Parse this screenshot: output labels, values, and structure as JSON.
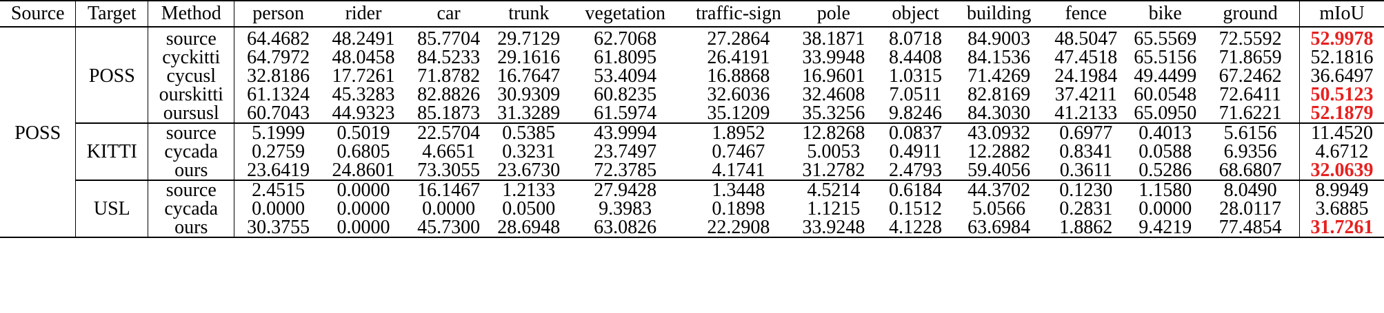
{
  "table": {
    "headers": [
      "Source",
      "Target",
      "Method",
      "person",
      "rider",
      "car",
      "trunk",
      "vegetation",
      "traffic-sign",
      "pole",
      "object",
      "building",
      "fence",
      "bike",
      "ground",
      "mIoU"
    ],
    "source": "POSS",
    "groups": [
      {
        "target": "POSS",
        "rows": [
          {
            "method": "source",
            "values": [
              "64.4682",
              "48.2491",
              "85.7704",
              "29.7129",
              "62.7068",
              "27.2864",
              "38.1871",
              "8.0718",
              "84.9003",
              "48.5047",
              "65.5569",
              "72.5592"
            ],
            "miou": "52.9978",
            "best": true
          },
          {
            "method": "cyckitti",
            "values": [
              "64.7972",
              "48.0458",
              "84.5233",
              "29.1616",
              "61.8095",
              "26.4191",
              "33.9948",
              "8.4408",
              "84.1536",
              "47.4518",
              "65.5156",
              "71.8659"
            ],
            "miou": "52.1816",
            "best": false
          },
          {
            "method": "cycusl",
            "values": [
              "32.8186",
              "17.7261",
              "71.8782",
              "16.7647",
              "53.4094",
              "16.8868",
              "16.9601",
              "1.0315",
              "71.4269",
              "24.1984",
              "49.4499",
              "67.2462"
            ],
            "miou": "36.6497",
            "best": false
          },
          {
            "method": "ourskitti",
            "values": [
              "61.1324",
              "45.3283",
              "82.8826",
              "30.9309",
              "60.8235",
              "32.6036",
              "32.4608",
              "7.0511",
              "82.8169",
              "37.4211",
              "60.0548",
              "72.6411"
            ],
            "miou": "50.5123",
            "best": true
          },
          {
            "method": "oursusl",
            "values": [
              "60.7043",
              "44.9323",
              "85.1873",
              "31.3289",
              "61.5974",
              "35.1209",
              "35.3256",
              "9.8246",
              "84.3030",
              "41.2133",
              "65.0950",
              "71.6221"
            ],
            "miou": "52.1879",
            "best": true
          }
        ]
      },
      {
        "target": "KITTI",
        "rows": [
          {
            "method": "source",
            "values": [
              "5.1999",
              "0.5019",
              "22.5704",
              "0.5385",
              "43.9994",
              "1.8952",
              "12.8268",
              "0.0837",
              "43.0932",
              "0.6977",
              "0.4013",
              "5.6156"
            ],
            "miou": "11.4520",
            "best": false
          },
          {
            "method": "cycada",
            "values": [
              "0.2759",
              "0.6805",
              "4.6651",
              "0.3231",
              "23.7497",
              "0.7467",
              "5.0053",
              "0.4911",
              "12.2882",
              "0.8341",
              "0.0588",
              "6.9356"
            ],
            "miou": "4.6712",
            "best": false
          },
          {
            "method": "ours",
            "values": [
              "23.6419",
              "24.8601",
              "73.3055",
              "23.6730",
              "72.3785",
              "4.1741",
              "31.2782",
              "2.4793",
              "59.4056",
              "0.3611",
              "0.5286",
              "68.6807"
            ],
            "miou": "32.0639",
            "best": true
          }
        ]
      },
      {
        "target": "USL",
        "rows": [
          {
            "method": "source",
            "values": [
              "2.4515",
              "0.0000",
              "16.1467",
              "1.2133",
              "27.9428",
              "1.3448",
              "4.5214",
              "0.6184",
              "44.3702",
              "0.1230",
              "1.1580",
              "8.0490"
            ],
            "miou": "8.9949",
            "best": false
          },
          {
            "method": "cycada",
            "values": [
              "0.0000",
              "0.0000",
              "0.0000",
              "0.0500",
              "9.3983",
              "0.1898",
              "1.1215",
              "0.1512",
              "5.0566",
              "0.2831",
              "0.0000",
              "28.0117"
            ],
            "miou": "3.6885",
            "best": false
          },
          {
            "method": "ours",
            "values": [
              "30.3755",
              "0.0000",
              "45.7300",
              "28.6948",
              "63.0826",
              "22.2908",
              "33.9248",
              "4.1228",
              "63.6984",
              "1.8862",
              "9.4219",
              "77.4854"
            ],
            "miou": "31.7261",
            "best": true
          }
        ]
      }
    ]
  }
}
